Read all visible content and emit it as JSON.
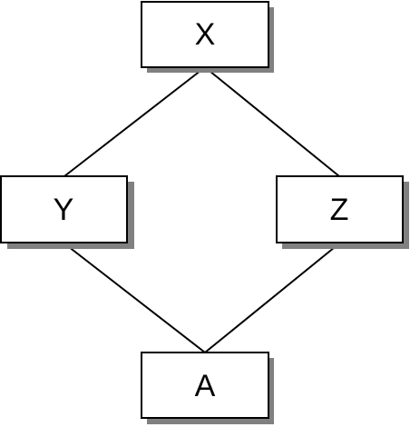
{
  "diagram": {
    "nodes": {
      "x": {
        "label": "X"
      },
      "y": {
        "label": "Y"
      },
      "z": {
        "label": "Z"
      },
      "a": {
        "label": "A"
      }
    },
    "edges": [
      {
        "from": "X",
        "to": "Y"
      },
      {
        "from": "X",
        "to": "Z"
      },
      {
        "from": "Y",
        "to": "A"
      },
      {
        "from": "Z",
        "to": "A"
      }
    ],
    "colors": {
      "box_fill": "#ffffff",
      "box_stroke": "#000000",
      "shadow": "#808080",
      "line": "#000000"
    }
  }
}
